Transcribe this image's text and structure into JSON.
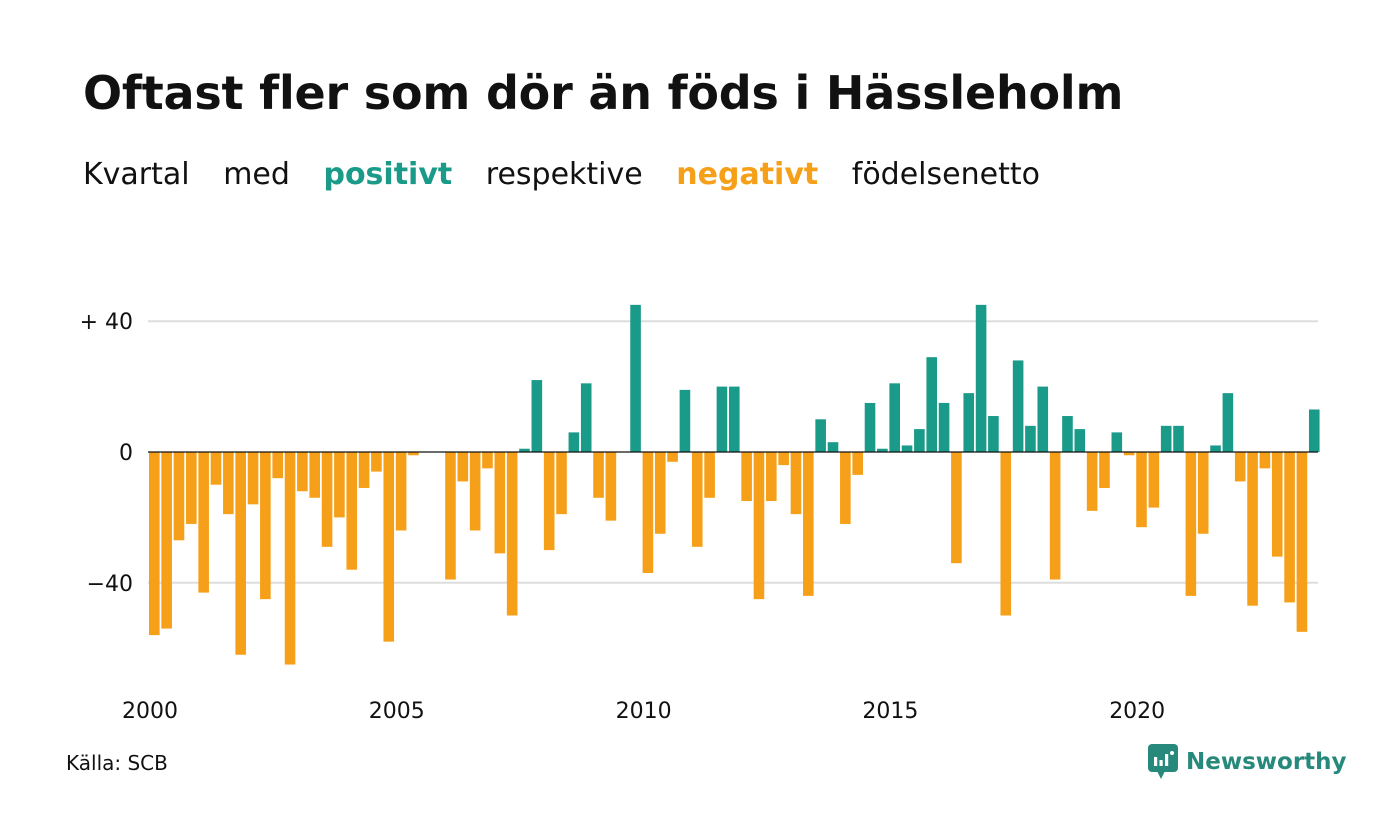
{
  "title": "Oftast fler som dör än föds i Hässleholm",
  "subtitle": {
    "w1": "Kvartal",
    "w2": "med",
    "positive": "positivt",
    "w3": "respektive",
    "negative": "negativt",
    "w4": "födelsenetto"
  },
  "source": "Källa: SCB",
  "brand": "Newsworthy",
  "colors": {
    "positive": "#1a9a88",
    "negative": "#f6a01a",
    "grid": "#dddddd",
    "brand": "#27897b"
  },
  "chart_data": {
    "type": "bar",
    "x_start": 2000,
    "x_step": 0.25,
    "x_ticks": [
      2000,
      2005,
      2010,
      2015,
      2020
    ],
    "y_ticks": [
      {
        "value": 40,
        "label": "+ 40"
      },
      {
        "value": 0,
        "label": "0"
      },
      {
        "value": -40,
        "label": "−40"
      }
    ],
    "ylim": [
      -70,
      45
    ],
    "grid": true,
    "values": [
      -56,
      -54,
      -27,
      -22,
      -43,
      -10,
      -19,
      -62,
      -16,
      -45,
      -8,
      -65,
      -12,
      -14,
      -29,
      -20,
      -36,
      -11,
      -6,
      -58,
      -24,
      -1,
      0,
      0,
      -39,
      -9,
      -24,
      -5,
      -31,
      -50,
      1,
      22,
      -30,
      -19,
      6,
      21,
      -14,
      -21,
      0,
      45,
      -37,
      -25,
      -3,
      19,
      -29,
      -14,
      20,
      20,
      -15,
      -45,
      -15,
      -4,
      -19,
      -44,
      10,
      3,
      -22,
      -7,
      15,
      1,
      21,
      2,
      7,
      29,
      15,
      -34,
      18,
      45,
      11,
      -50,
      28,
      8,
      20,
      -39,
      11,
      7,
      -18,
      -11,
      6,
      -1,
      -23,
      -17,
      8,
      8,
      -44,
      -25,
      2,
      18,
      -9,
      -47,
      -5,
      -32,
      -46,
      -55,
      13
    ]
  }
}
